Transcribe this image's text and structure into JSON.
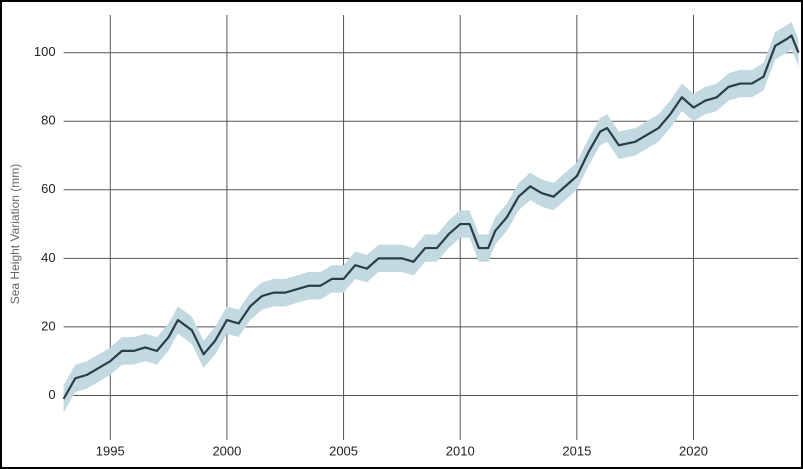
{
  "chart_data": {
    "type": "line_band",
    "y_label": "Sea Height Variation (mm)",
    "x": [
      1993.0,
      1993.5,
      1994.0,
      1994.5,
      1995.0,
      1995.5,
      1996.0,
      1996.5,
      1997.0,
      1997.5,
      1997.9,
      1998.5,
      1999.0,
      1999.5,
      2000.0,
      2000.5,
      2001.0,
      2001.5,
      2002.0,
      2002.5,
      2003.0,
      2003.5,
      2004.0,
      2004.5,
      2005.0,
      2005.5,
      2006.0,
      2006.5,
      2007.0,
      2007.5,
      2008.0,
      2008.5,
      2009.0,
      2009.5,
      2010.0,
      2010.4,
      2010.8,
      2011.2,
      2011.5,
      2012.0,
      2012.5,
      2013.0,
      2013.5,
      2014.0,
      2014.5,
      2015.0,
      2015.5,
      2016.0,
      2016.3,
      2016.8,
      2017.5,
      2018.0,
      2018.5,
      2019.0,
      2019.5,
      2020.0,
      2020.5,
      2021.0,
      2021.5,
      2022.0,
      2022.5,
      2023.0,
      2023.5,
      2024.0,
      2024.2,
      2024.5
    ],
    "values": [
      -1,
      5,
      6,
      8,
      10,
      13,
      13,
      14,
      13,
      17,
      22,
      19,
      12,
      16,
      22,
      21,
      26,
      29,
      30,
      30,
      31,
      32,
      32,
      34,
      34,
      38,
      37,
      40,
      40,
      40,
      39,
      43,
      43,
      47,
      50,
      50,
      43,
      43,
      48,
      52,
      58,
      61,
      59,
      58,
      61,
      64,
      71,
      77,
      78,
      73,
      74,
      76,
      78,
      82,
      87,
      84,
      86,
      87,
      90,
      91,
      91,
      93,
      102,
      104,
      105,
      100
    ],
    "lower": [
      -5,
      1,
      2,
      4,
      6,
      9,
      9,
      10,
      9,
      13,
      18,
      15,
      8,
      12,
      18,
      17,
      22,
      25,
      26,
      26,
      27,
      28,
      28,
      30,
      30,
      34,
      33,
      36,
      36,
      36,
      35,
      39,
      39,
      43,
      46,
      46,
      39,
      39,
      44,
      48,
      54,
      57,
      55,
      54,
      57,
      60,
      67,
      73,
      74,
      69,
      70,
      72,
      74,
      78,
      83,
      80,
      82,
      83,
      86,
      87,
      87,
      89,
      98,
      100,
      101,
      96
    ],
    "upper": [
      3,
      9,
      10,
      12,
      14,
      17,
      17,
      18,
      17,
      21,
      26,
      23,
      16,
      20,
      26,
      25,
      30,
      33,
      34,
      34,
      35,
      36,
      36,
      38,
      38,
      42,
      41,
      44,
      44,
      44,
      43,
      47,
      47,
      51,
      54,
      54,
      47,
      47,
      52,
      56,
      62,
      65,
      63,
      62,
      65,
      68,
      75,
      81,
      82,
      77,
      78,
      80,
      82,
      86,
      91,
      88,
      90,
      91,
      94,
      95,
      95,
      97,
      106,
      108,
      109,
      104
    ],
    "color": "#2b3d45",
    "band_color": "#c3d9e2",
    "xlim": [
      1993,
      2024.5
    ],
    "ylim": [
      -13,
      111
    ],
    "xticks": [
      1995,
      2000,
      2005,
      2010,
      2015,
      2020
    ],
    "yticks": [
      0,
      20,
      40,
      60,
      80,
      100
    ],
    "grid": true
  }
}
